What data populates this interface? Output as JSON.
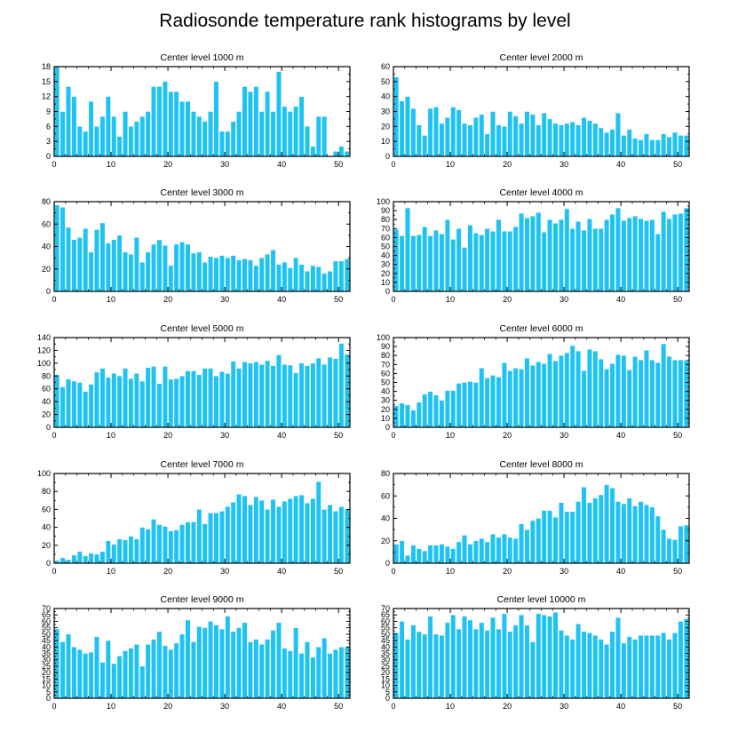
{
  "title": "Radiosonde temperature rank histograms by level",
  "colors": {
    "bar": "#1ec3f4",
    "bar_edge": "#ffffff",
    "axis": "#000000"
  },
  "chart_data": [
    {
      "type": "bar",
      "title": "Center level 1000 m",
      "xlabel": "",
      "ylabel": "",
      "xlim": [
        0,
        52
      ],
      "xticks": [
        0,
        10,
        20,
        30,
        40,
        50
      ],
      "ylim": [
        0,
        18
      ],
      "yticks": [
        0,
        3,
        6,
        9,
        12,
        15,
        18
      ],
      "values": [
        18,
        9,
        14,
        12,
        6,
        5,
        11,
        6,
        8,
        12,
        8,
        4,
        9,
        6,
        7,
        8,
        9,
        14,
        14,
        15,
        13,
        13,
        11,
        11,
        9,
        8,
        7,
        9,
        15,
        5,
        5,
        7,
        9,
        14,
        13,
        14,
        9,
        13,
        9,
        17,
        10,
        9,
        10,
        12,
        6,
        2,
        8,
        8,
        0,
        1,
        2,
        1
      ]
    },
    {
      "type": "bar",
      "title": "Center level 2000 m",
      "xlabel": "",
      "ylabel": "",
      "xlim": [
        0,
        52
      ],
      "xticks": [
        0,
        10,
        20,
        30,
        40,
        50
      ],
      "ylim": [
        0,
        60
      ],
      "yticks": [
        0,
        10,
        20,
        30,
        40,
        50,
        60
      ],
      "values": [
        53,
        37,
        40,
        32,
        21,
        14,
        32,
        33,
        22,
        26,
        33,
        31,
        22,
        21,
        26,
        28,
        15,
        30,
        21,
        20,
        30,
        27,
        22,
        30,
        28,
        21,
        29,
        25,
        22,
        21,
        22,
        23,
        21,
        26,
        24,
        22,
        19,
        16,
        18,
        29,
        14,
        18,
        12,
        11,
        15,
        11,
        11,
        15,
        13,
        16,
        14,
        14
      ]
    },
    {
      "type": "bar",
      "title": "Center level 3000 m",
      "xlabel": "",
      "ylabel": "",
      "xlim": [
        0,
        52
      ],
      "xticks": [
        0,
        10,
        20,
        30,
        40,
        50
      ],
      "ylim": [
        0,
        80
      ],
      "yticks": [
        0,
        20,
        40,
        60,
        80
      ],
      "values": [
        77,
        75,
        57,
        46,
        48,
        56,
        35,
        55,
        61,
        43,
        46,
        50,
        35,
        33,
        48,
        26,
        35,
        42,
        46,
        41,
        23,
        42,
        44,
        42,
        34,
        35,
        26,
        31,
        30,
        32,
        30,
        32,
        28,
        29,
        28,
        23,
        30,
        33,
        37,
        24,
        26,
        21,
        30,
        24,
        18,
        23,
        22,
        16,
        18,
        27,
        27,
        29
      ]
    },
    {
      "type": "bar",
      "title": "Center level 4000 m",
      "xlabel": "",
      "ylabel": "",
      "xlim": [
        0,
        52
      ],
      "xticks": [
        0,
        10,
        20,
        30,
        40,
        50
      ],
      "ylim": [
        0,
        100
      ],
      "yticks": [
        0,
        10,
        20,
        30,
        40,
        50,
        60,
        70,
        80,
        90,
        100
      ],
      "values": [
        69,
        62,
        93,
        62,
        63,
        72,
        62,
        68,
        64,
        80,
        58,
        70,
        49,
        74,
        65,
        63,
        70,
        67,
        80,
        67,
        67,
        72,
        87,
        82,
        84,
        88,
        66,
        80,
        76,
        80,
        92,
        70,
        78,
        68,
        81,
        70,
        70,
        80,
        86,
        93,
        79,
        82,
        84,
        81,
        79,
        80,
        64,
        89,
        81,
        86,
        87,
        93
      ]
    },
    {
      "type": "bar",
      "title": "Center level 5000 m",
      "xlabel": "",
      "ylabel": "",
      "xlim": [
        0,
        52
      ],
      "xticks": [
        0,
        10,
        20,
        30,
        40,
        50
      ],
      "ylim": [
        0,
        140
      ],
      "yticks": [
        0,
        20,
        40,
        60,
        80,
        100,
        120,
        140
      ],
      "values": [
        82,
        63,
        75,
        72,
        70,
        56,
        67,
        86,
        92,
        78,
        84,
        80,
        92,
        76,
        84,
        72,
        93,
        95,
        68,
        95,
        75,
        76,
        80,
        88,
        88,
        82,
        92,
        92,
        80,
        87,
        84,
        103,
        92,
        102,
        100,
        102,
        98,
        104,
        96,
        113,
        98,
        97,
        85,
        100,
        96,
        100,
        108,
        98,
        109,
        107,
        131,
        114
      ]
    },
    {
      "type": "bar",
      "title": "Center level 6000 m",
      "xlabel": "",
      "ylabel": "",
      "xlim": [
        0,
        52
      ],
      "xticks": [
        0,
        10,
        20,
        30,
        40,
        50
      ],
      "ylim": [
        0,
        100
      ],
      "yticks": [
        0,
        10,
        20,
        30,
        40,
        50,
        60,
        70,
        80,
        90,
        100
      ],
      "values": [
        24,
        27,
        25,
        19,
        28,
        37,
        40,
        36,
        30,
        41,
        41,
        49,
        50,
        51,
        50,
        66,
        55,
        58,
        56,
        72,
        63,
        66,
        65,
        77,
        69,
        73,
        71,
        82,
        74,
        80,
        83,
        91,
        85,
        63,
        87,
        85,
        76,
        65,
        71,
        81,
        80,
        64,
        79,
        75,
        86,
        75,
        72,
        93,
        79,
        75,
        75,
        75
      ]
    },
    {
      "type": "bar",
      "title": "Center level 7000 m",
      "xlabel": "",
      "ylabel": "",
      "xlim": [
        0,
        52
      ],
      "xticks": [
        0,
        10,
        20,
        30,
        40,
        50
      ],
      "ylim": [
        0,
        100
      ],
      "yticks": [
        0,
        20,
        40,
        60,
        80,
        100
      ],
      "values": [
        3,
        6,
        4,
        9,
        13,
        8,
        11,
        10,
        13,
        25,
        21,
        27,
        26,
        30,
        27,
        40,
        38,
        49,
        43,
        41,
        36,
        37,
        43,
        46,
        46,
        60,
        44,
        56,
        56,
        58,
        63,
        68,
        77,
        75,
        65,
        74,
        70,
        60,
        71,
        63,
        69,
        72,
        75,
        76,
        67,
        72,
        91,
        60,
        65,
        58,
        63,
        60
      ]
    },
    {
      "type": "bar",
      "title": "Center level 8000 m",
      "xlabel": "",
      "ylabel": "",
      "xlim": [
        0,
        52
      ],
      "xticks": [
        0,
        10,
        20,
        30,
        40,
        50
      ],
      "ylim": [
        0,
        80
      ],
      "yticks": [
        0,
        20,
        40,
        60,
        80
      ],
      "values": [
        17,
        20,
        7,
        16,
        13,
        11,
        16,
        16,
        17,
        15,
        13,
        19,
        25,
        17,
        20,
        22,
        19,
        26,
        23,
        26,
        23,
        22,
        35,
        30,
        38,
        40,
        47,
        47,
        41,
        54,
        46,
        46,
        55,
        68,
        54,
        58,
        61,
        70,
        67,
        55,
        53,
        58,
        51,
        55,
        52,
        50,
        42,
        30,
        22,
        21,
        33,
        34
      ]
    },
    {
      "type": "bar",
      "title": "Center level 9000 m",
      "xlabel": "",
      "ylabel": "",
      "xlim": [
        0,
        52
      ],
      "xticks": [
        0,
        10,
        20,
        30,
        40,
        50
      ],
      "ylim": [
        0,
        70
      ],
      "yticks": [
        0,
        5,
        10,
        15,
        20,
        25,
        30,
        35,
        40,
        45,
        50,
        55,
        60,
        65,
        70
      ],
      "values": [
        54,
        44,
        50,
        40,
        38,
        35,
        36,
        48,
        28,
        45,
        27,
        33,
        37,
        39,
        42,
        25,
        42,
        46,
        52,
        41,
        38,
        43,
        50,
        61,
        44,
        56,
        55,
        60,
        57,
        54,
        64,
        52,
        55,
        59,
        44,
        46,
        42,
        46,
        53,
        59,
        39,
        37,
        55,
        35,
        44,
        32,
        40,
        47,
        35,
        38,
        40,
        40
      ]
    },
    {
      "type": "bar",
      "title": "Center level 10000 m",
      "xlabel": "",
      "ylabel": "",
      "xlim": [
        0,
        52
      ],
      "xticks": [
        0,
        10,
        20,
        30,
        40,
        50
      ],
      "ylim": [
        0,
        70
      ],
      "yticks": [
        0,
        5,
        10,
        15,
        20,
        25,
        30,
        35,
        40,
        45,
        50,
        55,
        60,
        65,
        70
      ],
      "values": [
        51,
        60,
        46,
        57,
        52,
        50,
        64,
        50,
        49,
        59,
        65,
        54,
        64,
        61,
        54,
        59,
        53,
        63,
        54,
        66,
        52,
        57,
        65,
        57,
        44,
        66,
        65,
        64,
        67,
        53,
        49,
        46,
        58,
        52,
        51,
        49,
        46,
        42,
        52,
        63,
        43,
        48,
        46,
        49,
        49,
        49,
        49,
        51,
        46,
        51,
        60,
        62
      ]
    }
  ]
}
